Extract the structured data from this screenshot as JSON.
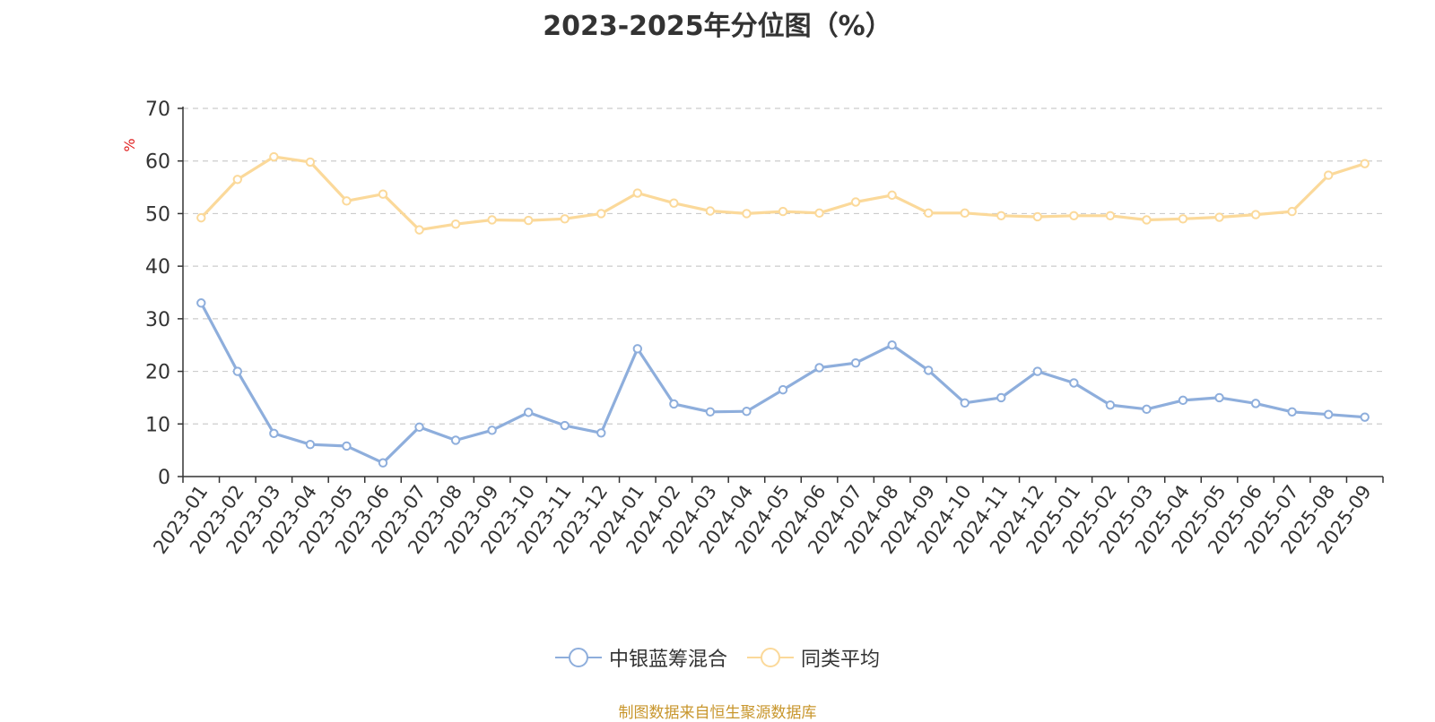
{
  "chart_data": {
    "type": "line",
    "title": "2023-2025年分位图（%）",
    "ylabel": "%",
    "ylim": [
      0,
      70
    ],
    "yticks": [
      0,
      10,
      20,
      30,
      40,
      50,
      60,
      70
    ],
    "grid": true,
    "legend_position": "bottom",
    "categories": [
      "2023-01",
      "2023-02",
      "2023-03",
      "2023-04",
      "2023-05",
      "2023-06",
      "2023-07",
      "2023-08",
      "2023-09",
      "2023-10",
      "2023-11",
      "2023-12",
      "2024-01",
      "2024-02",
      "2024-03",
      "2024-04",
      "2024-05",
      "2024-06",
      "2024-07",
      "2024-08",
      "2024-09",
      "2024-10",
      "2024-11",
      "2024-12",
      "2025-01",
      "2025-02",
      "2025-03",
      "2025-04",
      "2025-05",
      "2025-06",
      "2025-07",
      "2025-08",
      "2025-09"
    ],
    "series": [
      {
        "name": "中银蓝筹混合",
        "color": "#8eaedc",
        "values": [
          33.0,
          20.0,
          8.2,
          6.1,
          5.8,
          2.6,
          9.4,
          6.9,
          8.8,
          12.2,
          9.7,
          8.3,
          24.3,
          13.8,
          12.3,
          12.4,
          16.5,
          20.7,
          21.6,
          25.0,
          20.2,
          14.0,
          15.0,
          20.0,
          17.8,
          13.6,
          12.8,
          14.5,
          15.0,
          13.9,
          12.3,
          11.8,
          11.3
        ]
      },
      {
        "name": "同类平均",
        "color": "#fbd99a",
        "values": [
          49.2,
          56.5,
          60.8,
          59.8,
          52.4,
          53.7,
          46.9,
          48.0,
          48.8,
          48.7,
          49.0,
          50.0,
          53.9,
          52.0,
          50.5,
          50.0,
          50.4,
          50.1,
          52.2,
          53.5,
          50.1,
          50.1,
          49.6,
          49.4,
          49.6,
          49.6,
          48.8,
          49.0,
          49.3,
          49.8,
          50.4,
          57.3,
          59.5
        ]
      }
    ]
  },
  "source": "制图数据来自恒生聚源数据库"
}
